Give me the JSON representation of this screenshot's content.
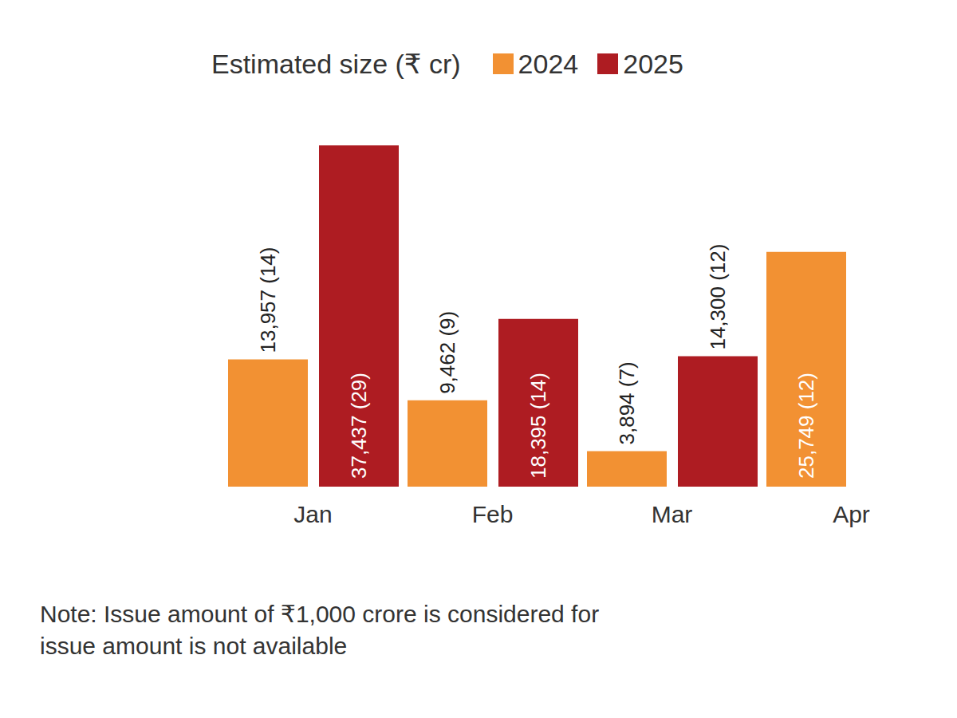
{
  "chart_data": {
    "type": "bar",
    "title": "Estimated size (₹ cr)",
    "categories": [
      "Jan",
      "Feb",
      "Mar",
      "Apr"
    ],
    "series": [
      {
        "name": "2024",
        "color": "#f29133",
        "values": [
          13957,
          9462,
          3894,
          25749
        ],
        "value_labels": [
          "13,957 (14)",
          "9,462 (9)",
          "3,894 (7)",
          "25,749 (12)"
        ]
      },
      {
        "name": "2025",
        "color": "#ae1c22",
        "values": [
          37437,
          18395,
          14300,
          null
        ],
        "value_labels": [
          "37,437 (29)",
          "18,395 (14)",
          "14,300 (12)",
          null
        ]
      }
    ],
    "ylim": [
      0,
      42000
    ],
    "tick_labels": "x",
    "data_labels": true,
    "grid": false,
    "legend": "top",
    "annotations": [
      "Note: Issue amount of ₹1,000 crore is considered for",
      "issue amount is not available"
    ]
  }
}
